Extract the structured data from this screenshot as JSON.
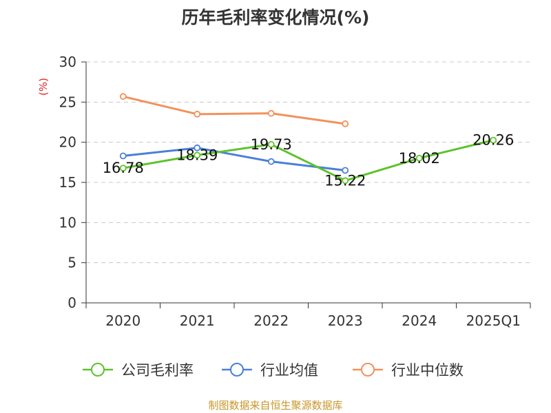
{
  "title": "历年毛利率变化情况(%)",
  "source": "制图数据来自恒生聚源数据库",
  "chart_data": {
    "type": "line",
    "title": "历年毛利率变化情况(%)",
    "ylabel": "(%)",
    "categories": [
      "2020",
      "2021",
      "2022",
      "2023",
      "2024",
      "2025Q1"
    ],
    "ylim": [
      0,
      30
    ],
    "yticks": [
      0,
      5,
      10,
      15,
      20,
      25,
      30
    ],
    "grid": true,
    "legend_position": "bottom",
    "series": [
      {
        "name": "公司毛利率",
        "color": "#5ec22b",
        "labels": true,
        "values": [
          16.78,
          18.39,
          19.73,
          15.22,
          18.02,
          20.26
        ]
      },
      {
        "name": "行业均值",
        "color": "#4a7fd9",
        "labels": false,
        "values": [
          18.3,
          19.3,
          17.6,
          16.5,
          null,
          null
        ]
      },
      {
        "name": "行业中位数",
        "color": "#f2915a",
        "labels": false,
        "values": [
          25.7,
          23.5,
          23.6,
          22.3,
          null,
          null
        ]
      }
    ]
  }
}
